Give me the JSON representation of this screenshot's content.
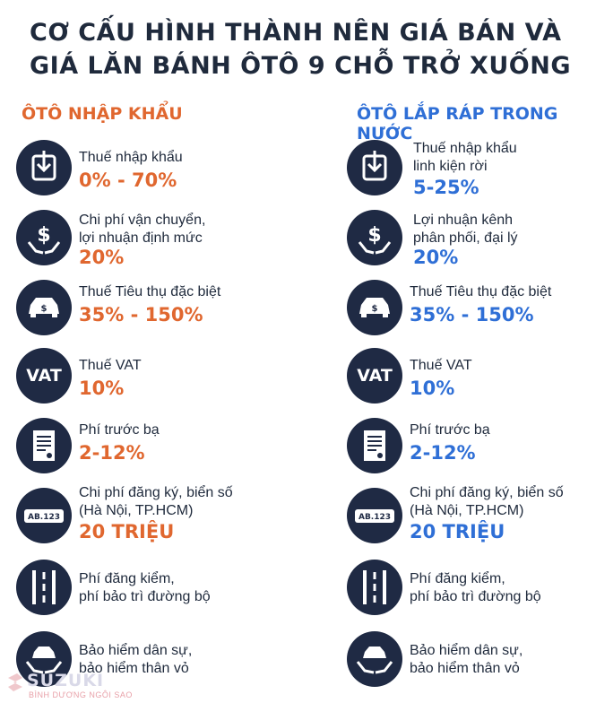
{
  "title": {
    "line1": "CƠ CẤU HÌNH THÀNH NÊN GIÁ BÁN VÀ",
    "line2": "GIÁ LĂN BÁNH ÔTÔ 9 CHỖ TRỞ XUỐNG"
  },
  "columns": {
    "left_heading": "ÔTÔ NHẬP KHẨU",
    "right_heading": "ÔTÔ LẮP RÁP TRONG NƯỚC"
  },
  "left": [
    {
      "label1": "Thuế nhập khẩu",
      "label2": "",
      "value": "0% - 70%"
    },
    {
      "label1": "Chi phí vận chuyển,",
      "label2": "lợi nhuận định mức",
      "value": "20%"
    },
    {
      "label1": "Thuế Tiêu thụ đặc biệt",
      "label2": "",
      "value": "35% - 150%"
    },
    {
      "label1": "Thuế VAT",
      "label2": "",
      "value": "10%"
    },
    {
      "label1": "Phí trước bạ",
      "label2": "",
      "value": "2-12%"
    },
    {
      "label1": "Chi phí đăng ký, biển số",
      "label2": "(Hà Nội, TP.HCM)",
      "value": "20 TRIỆU"
    },
    {
      "label1": "Phí đăng kiểm,",
      "label2": "phí bảo trì đường bộ",
      "value": ""
    },
    {
      "label1": "Bảo hiểm dân sự,",
      "label2": "bảo hiểm thân vỏ",
      "value": ""
    }
  ],
  "right": [
    {
      "label1": "Thuế nhập khẩu",
      "label2": "linh kiện rời",
      "value": "5-25%"
    },
    {
      "label1": "Lợi nhuận kênh",
      "label2": "phân phối, đại lý",
      "value": "20%"
    },
    {
      "label1": "Thuế Tiêu thụ đặc biệt",
      "label2": "",
      "value": "35% - 150%"
    },
    {
      "label1": "Thuế VAT",
      "label2": "",
      "value": "10%"
    },
    {
      "label1": "Phí trước bạ",
      "label2": "",
      "value": "2-12%"
    },
    {
      "label1": "Chi phí đăng ký, biển số",
      "label2": "(Hà Nội, TP.HCM)",
      "value": "20 TRIỆU"
    },
    {
      "label1": "Phí đăng kiểm,",
      "label2": "phí bảo trì đường bộ",
      "value": ""
    },
    {
      "label1": "Bảo hiểm dân sự,",
      "label2": "bảo hiểm thân vỏ",
      "value": ""
    }
  ],
  "icons": {
    "vat_text": "VAT",
    "plate_text": "AB.123"
  },
  "watermark": {
    "brand": "SUZUKI",
    "sub": "BÌNH DƯƠNG NGÔI SAO"
  },
  "colors": {
    "navy": "#1f2a44",
    "orange": "#e0672f",
    "blue": "#2f6fd6"
  }
}
